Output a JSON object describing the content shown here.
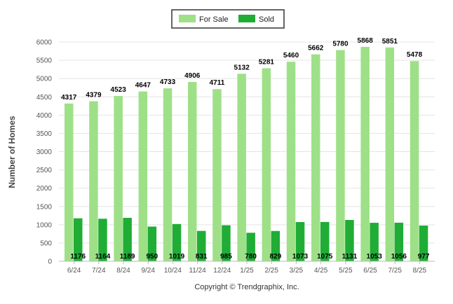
{
  "chart_data": {
    "type": "bar",
    "categories": [
      "6/24",
      "7/24",
      "8/24",
      "9/24",
      "10/24",
      "11/24",
      "12/24",
      "1/25",
      "2/25",
      "3/25",
      "4/25",
      "5/25",
      "6/25",
      "7/25",
      "8/25"
    ],
    "series": [
      {
        "name": "For Sale",
        "color": "#9ee087",
        "values": [
          4317,
          4379,
          4523,
          4647,
          4733,
          4906,
          4711,
          5132,
          5281,
          5460,
          5662,
          5780,
          5868,
          5851,
          5478
        ]
      },
      {
        "name": "Sold",
        "color": "#1fad36",
        "values": [
          1176,
          1164,
          1189,
          950,
          1019,
          831,
          985,
          780,
          829,
          1073,
          1075,
          1131,
          1053,
          1056,
          977
        ]
      }
    ],
    "xlabel": "",
    "ylabel": "Number of Homes",
    "ylim": [
      0,
      6000
    ],
    "yticks": [
      0,
      500,
      1000,
      1500,
      2000,
      2500,
      3000,
      3500,
      4000,
      4500,
      5000,
      5500,
      6000
    ],
    "grid": true,
    "legend": "top-center"
  },
  "footer": {
    "copyright": "Copyright © Trendgraphix, Inc."
  }
}
